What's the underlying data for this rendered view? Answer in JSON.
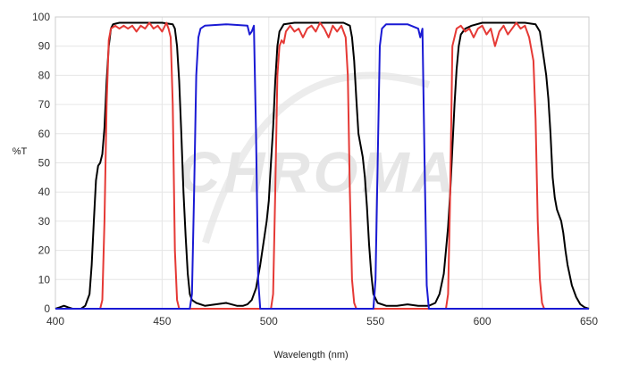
{
  "watermark": "CHROMA",
  "chart_data": {
    "type": "line",
    "title": "",
    "xlabel": "Wavelength (nm)",
    "ylabel": "%T",
    "xlim": [
      400,
      650
    ],
    "ylim": [
      0,
      100
    ],
    "xticks": [
      400,
      450,
      500,
      550,
      600,
      650
    ],
    "yticks": [
      0,
      10,
      20,
      30,
      40,
      50,
      60,
      70,
      80,
      90,
      100
    ],
    "grid": true,
    "legend": "none",
    "series": [
      {
        "color": "#000000",
        "points": [
          [
            400,
            0
          ],
          [
            402,
            0.5
          ],
          [
            404,
            1
          ],
          [
            406,
            0.5
          ],
          [
            408,
            0
          ],
          [
            412,
            0
          ],
          [
            414,
            1
          ],
          [
            416,
            5
          ],
          [
            417,
            15
          ],
          [
            418,
            30
          ],
          [
            419,
            44
          ],
          [
            420,
            49
          ],
          [
            421,
            50
          ],
          [
            422,
            53
          ],
          [
            423,
            62
          ],
          [
            424,
            78
          ],
          [
            425,
            90
          ],
          [
            426,
            96
          ],
          [
            427,
            97.5
          ],
          [
            430,
            98
          ],
          [
            440,
            98
          ],
          [
            450,
            98
          ],
          [
            455,
            97.5
          ],
          [
            456,
            96
          ],
          [
            457,
            90
          ],
          [
            458,
            78
          ],
          [
            459,
            60
          ],
          [
            460,
            40
          ],
          [
            461,
            25
          ],
          [
            462,
            12
          ],
          [
            463,
            5
          ],
          [
            464,
            3
          ],
          [
            466,
            2
          ],
          [
            470,
            1
          ],
          [
            475,
            1.5
          ],
          [
            480,
            2
          ],
          [
            485,
            1
          ],
          [
            488,
            1
          ],
          [
            490,
            1.5
          ],
          [
            492,
            3
          ],
          [
            494,
            7
          ],
          [
            496,
            15
          ],
          [
            498,
            25
          ],
          [
            499,
            30
          ],
          [
            500,
            37
          ],
          [
            501,
            50
          ],
          [
            502,
            62
          ],
          [
            503,
            78
          ],
          [
            504,
            90
          ],
          [
            505,
            95
          ],
          [
            507,
            97.5
          ],
          [
            512,
            98
          ],
          [
            520,
            98
          ],
          [
            530,
            98
          ],
          [
            535,
            98
          ],
          [
            538,
            97
          ],
          [
            539,
            93
          ],
          [
            540,
            85
          ],
          [
            541,
            72
          ],
          [
            542,
            60
          ],
          [
            543,
            56
          ],
          [
            544,
            52
          ],
          [
            545,
            45
          ],
          [
            546,
            35
          ],
          [
            547,
            22
          ],
          [
            548,
            12
          ],
          [
            549,
            5
          ],
          [
            551,
            2
          ],
          [
            555,
            1
          ],
          [
            560,
            1
          ],
          [
            565,
            1.5
          ],
          [
            570,
            1
          ],
          [
            575,
            1
          ],
          [
            578,
            2
          ],
          [
            580,
            5
          ],
          [
            582,
            12
          ],
          [
            583,
            20
          ],
          [
            584,
            28
          ],
          [
            585,
            40
          ],
          [
            586,
            55
          ],
          [
            587,
            70
          ],
          [
            588,
            82
          ],
          [
            589,
            90
          ],
          [
            590,
            94
          ],
          [
            592,
            96
          ],
          [
            595,
            97
          ],
          [
            600,
            98
          ],
          [
            610,
            98
          ],
          [
            620,
            98
          ],
          [
            625,
            97.5
          ],
          [
            627,
            95
          ],
          [
            628,
            90
          ],
          [
            629,
            85
          ],
          [
            630,
            80
          ],
          [
            631,
            72
          ],
          [
            632,
            60
          ],
          [
            633,
            45
          ],
          [
            634,
            38
          ],
          [
            635,
            34
          ],
          [
            636,
            32
          ],
          [
            637,
            30
          ],
          [
            638,
            26
          ],
          [
            639,
            20
          ],
          [
            640,
            15
          ],
          [
            642,
            8
          ],
          [
            644,
            4
          ],
          [
            646,
            1.5
          ],
          [
            648,
            0.5
          ],
          [
            650,
            0
          ]
        ]
      },
      {
        "color": "#e53935",
        "points": [
          [
            400,
            0
          ],
          [
            421,
            0
          ],
          [
            422,
            3
          ],
          [
            423,
            30
          ],
          [
            424,
            70
          ],
          [
            425,
            92
          ],
          [
            426,
            96
          ],
          [
            428,
            97
          ],
          [
            430,
            96
          ],
          [
            432,
            97
          ],
          [
            434,
            96
          ],
          [
            436,
            97
          ],
          [
            438,
            95
          ],
          [
            440,
            97
          ],
          [
            442,
            96
          ],
          [
            444,
            98
          ],
          [
            446,
            96
          ],
          [
            448,
            97
          ],
          [
            450,
            95
          ],
          [
            452,
            98
          ],
          [
            453,
            96
          ],
          [
            454,
            93
          ],
          [
            455,
            70
          ],
          [
            456,
            20
          ],
          [
            457,
            3
          ],
          [
            458,
            0
          ],
          [
            501,
            0
          ],
          [
            502,
            5
          ],
          [
            503,
            40
          ],
          [
            504,
            80
          ],
          [
            505,
            90
          ],
          [
            506,
            92
          ],
          [
            507,
            91
          ],
          [
            508,
            95
          ],
          [
            510,
            97
          ],
          [
            512,
            95
          ],
          [
            514,
            96
          ],
          [
            516,
            93
          ],
          [
            518,
            96
          ],
          [
            520,
            97
          ],
          [
            522,
            95
          ],
          [
            524,
            98
          ],
          [
            526,
            96
          ],
          [
            528,
            93
          ],
          [
            530,
            97
          ],
          [
            532,
            95
          ],
          [
            534,
            97
          ],
          [
            536,
            93
          ],
          [
            537,
            80
          ],
          [
            538,
            40
          ],
          [
            539,
            10
          ],
          [
            540,
            2
          ],
          [
            541,
            0
          ],
          [
            583,
            0
          ],
          [
            584,
            5
          ],
          [
            585,
            40
          ],
          [
            586,
            90
          ],
          [
            588,
            96
          ],
          [
            590,
            97
          ],
          [
            592,
            95
          ],
          [
            594,
            96
          ],
          [
            596,
            93
          ],
          [
            598,
            96
          ],
          [
            600,
            97
          ],
          [
            602,
            94
          ],
          [
            604,
            96
          ],
          [
            606,
            90
          ],
          [
            608,
            95
          ],
          [
            610,
            97
          ],
          [
            612,
            94
          ],
          [
            614,
            96
          ],
          [
            616,
            98
          ],
          [
            618,
            96
          ],
          [
            620,
            97
          ],
          [
            622,
            93
          ],
          [
            624,
            85
          ],
          [
            625,
            65
          ],
          [
            626,
            30
          ],
          [
            627,
            10
          ],
          [
            628,
            2
          ],
          [
            629,
            0
          ],
          [
            650,
            0
          ]
        ]
      },
      {
        "color": "#1a1ad4",
        "points": [
          [
            400,
            0
          ],
          [
            463,
            0
          ],
          [
            464,
            5
          ],
          [
            465,
            40
          ],
          [
            466,
            80
          ],
          [
            467,
            93
          ],
          [
            468,
            96
          ],
          [
            470,
            97
          ],
          [
            480,
            97.5
          ],
          [
            490,
            97
          ],
          [
            491,
            94
          ],
          [
            492,
            95
          ],
          [
            493,
            97
          ],
          [
            494,
            60
          ],
          [
            495,
            10
          ],
          [
            496,
            0
          ],
          [
            549,
            0
          ],
          [
            550,
            10
          ],
          [
            551,
            50
          ],
          [
            552,
            90
          ],
          [
            553,
            96
          ],
          [
            555,
            97.5
          ],
          [
            565,
            97.5
          ],
          [
            570,
            96
          ],
          [
            571,
            93
          ],
          [
            572,
            96
          ],
          [
            573,
            50
          ],
          [
            574,
            8
          ],
          [
            575,
            0
          ],
          [
            650,
            0
          ]
        ]
      }
    ]
  }
}
